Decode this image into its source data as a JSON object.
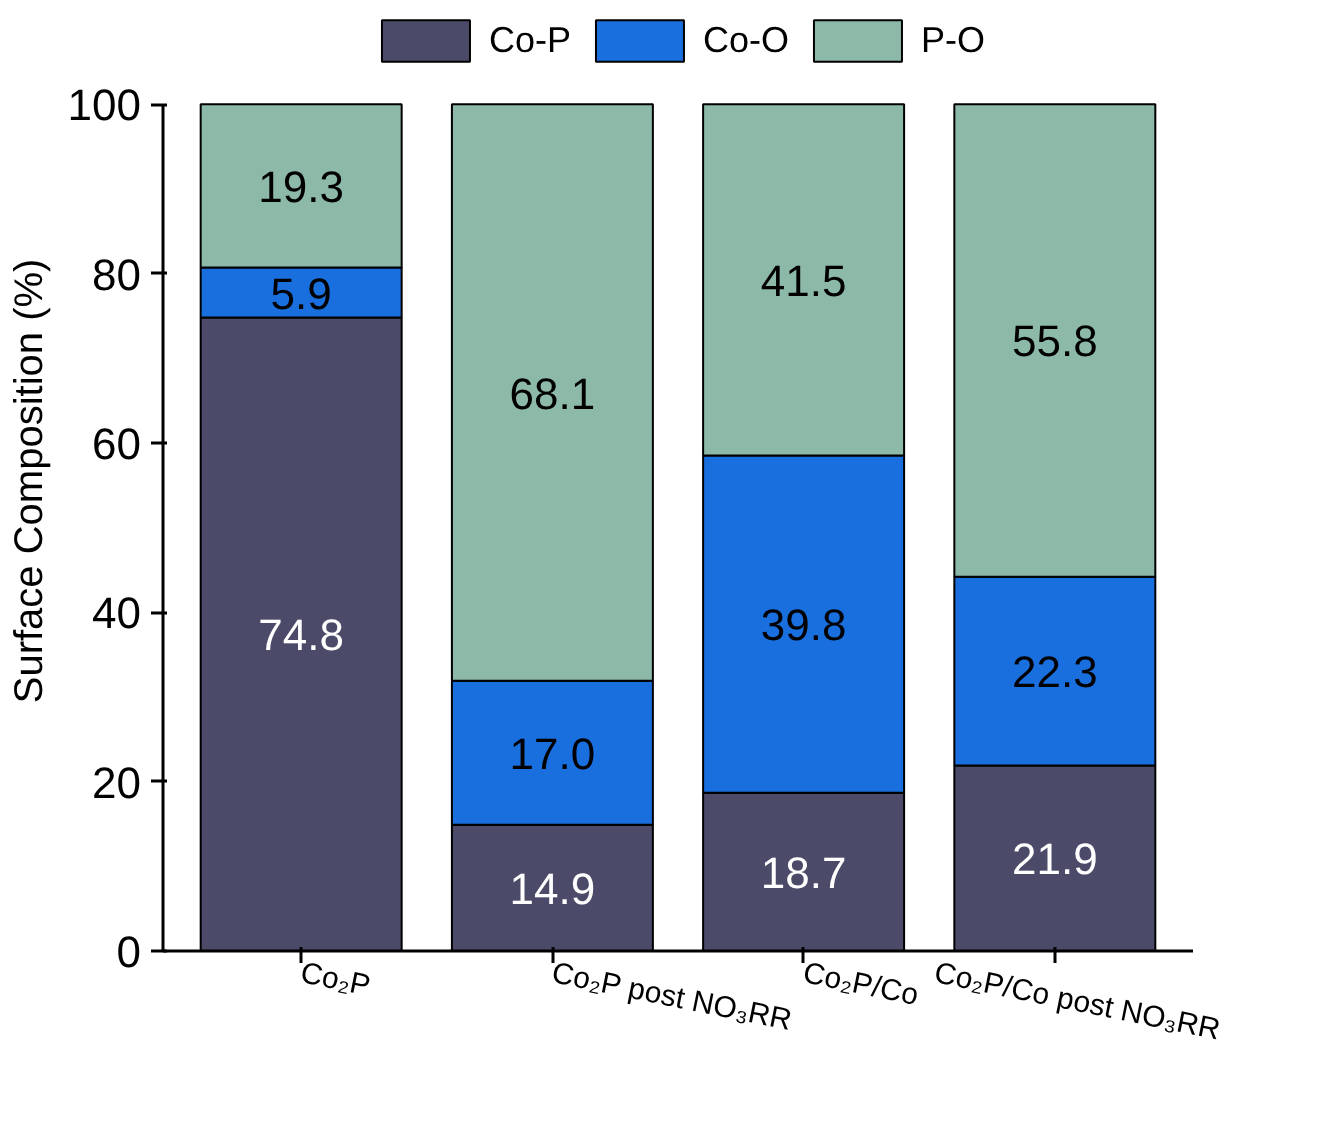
{
  "chart_data": {
    "type": "bar",
    "ylabel": "Surface Composition (%)",
    "categories": [
      "Co₂P",
      "Co₂P post NO₃RR",
      "Co₂P/Co",
      "Co₂P/Co post NO₃RR"
    ],
    "stacked": true,
    "legend": "top",
    "grid": false,
    "ylim": [
      0,
      100
    ],
    "yticks": [
      0,
      20,
      40,
      60,
      80,
      100
    ],
    "series": [
      {
        "name": "Co-P",
        "color": "#4b4a68",
        "values": [
          74.8,
          14.9,
          18.7,
          21.9
        ],
        "value_labels": [
          "74.8",
          "14.9",
          "18.7",
          "21.9"
        ]
      },
      {
        "name": "Co-O",
        "color": "#1a6fdf",
        "values": [
          5.9,
          17.0,
          39.8,
          22.3
        ],
        "value_labels": [
          "5.9",
          "17.0",
          "39.8",
          "22.3"
        ]
      },
      {
        "name": "P-O",
        "color": "#8db9a9",
        "values": [
          19.3,
          68.1,
          41.5,
          55.8
        ],
        "value_labels": [
          "19.3",
          "68.1",
          "41.5",
          "55.8"
        ]
      }
    ]
  }
}
